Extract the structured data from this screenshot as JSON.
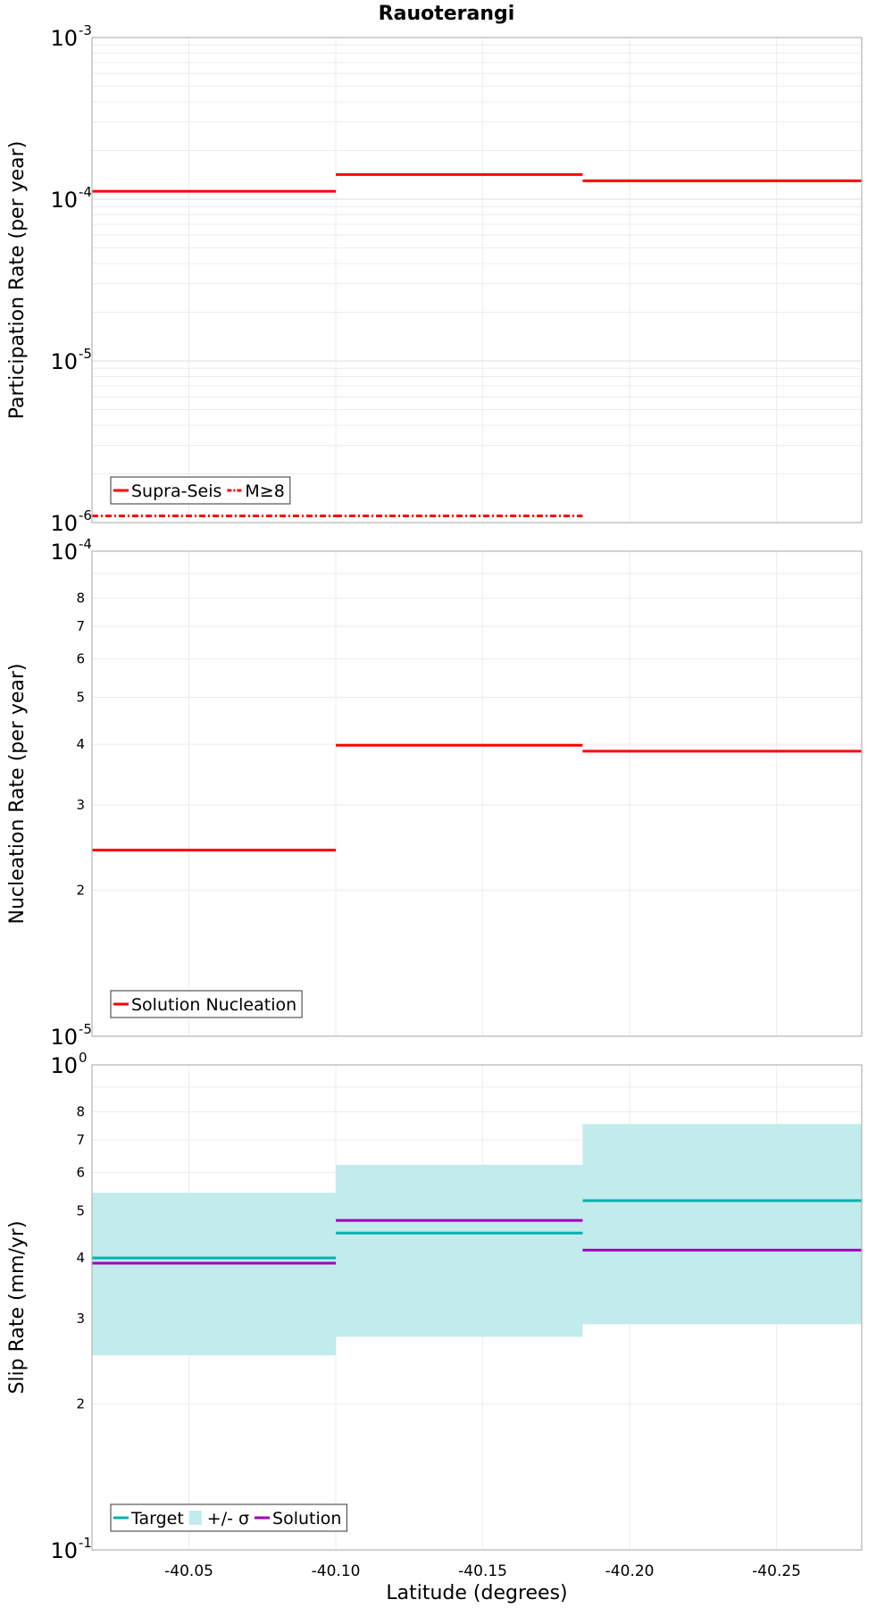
{
  "title": "Rauoterangi",
  "chart_data": [
    {
      "type": "line",
      "step": true,
      "ylabel": "Participation Rate (per year)",
      "xlabel": "",
      "yscale": "log",
      "ylim": [
        1e-06,
        0.001
      ],
      "xlim": [
        -40.017,
        -40.279
      ],
      "grid": true,
      "legend_position": "bottom-left",
      "y_tick_labels": [
        {
          "value": 0.001,
          "base": "10",
          "exp": "-3"
        },
        {
          "value": 0.0001,
          "base": "10",
          "exp": "-4"
        },
        {
          "value": 1e-05,
          "base": "10",
          "exp": "-5"
        },
        {
          "value": 1e-06,
          "base": "10",
          "exp": "-6"
        }
      ],
      "series": [
        {
          "name": "Supra-Seis",
          "color": "#ff0000",
          "style": "solid",
          "segments": [
            {
              "x": [
                -40.017,
                -40.1
              ],
              "y": 0.000112
            },
            {
              "x": [
                -40.1,
                -40.184
              ],
              "y": 0.000142
            },
            {
              "x": [
                -40.184,
                -40.279
              ],
              "y": 0.00013
            }
          ]
        },
        {
          "name": "M≥8",
          "color": "#ff0000",
          "style": "dashdot",
          "segments": [
            {
              "x": [
                -40.017,
                -40.1
              ],
              "y": 1.1e-06
            },
            {
              "x": [
                -40.1,
                -40.184
              ],
              "y": 1.1e-06
            }
          ]
        }
      ]
    },
    {
      "type": "line",
      "step": true,
      "ylabel": "Nucleation Rate (per year)",
      "xlabel": "",
      "yscale": "log",
      "ylim": [
        1e-05,
        0.0001
      ],
      "xlim": [
        -40.017,
        -40.279
      ],
      "grid": true,
      "legend_position": "bottom-left",
      "y_tick_labels": [
        {
          "value": 0.0001,
          "base": "10",
          "exp": "-4"
        },
        {
          "value": 1e-05,
          "base": "10",
          "exp": "-5"
        }
      ],
      "y_minor_tick_labels": [
        {
          "value": 2e-05,
          "label": "2"
        },
        {
          "value": 3e-05,
          "label": "3"
        },
        {
          "value": 4e-05,
          "label": "4"
        },
        {
          "value": 5e-05,
          "label": "5"
        },
        {
          "value": 6e-05,
          "label": "6"
        },
        {
          "value": 7e-05,
          "label": "7"
        },
        {
          "value": 8e-05,
          "label": "8"
        }
      ],
      "series": [
        {
          "name": "Solution Nucleation",
          "color": "#ff0000",
          "style": "solid",
          "segments": [
            {
              "x": [
                -40.017,
                -40.1
              ],
              "y": 2.42e-05
            },
            {
              "x": [
                -40.1,
                -40.184
              ],
              "y": 3.98e-05
            },
            {
              "x": [
                -40.184,
                -40.279
              ],
              "y": 3.87e-05
            }
          ]
        }
      ]
    },
    {
      "type": "line",
      "step": true,
      "ylabel": "Slip Rate (mm/yr)",
      "xlabel": "Latitude (degrees)",
      "yscale": "log",
      "ylim": [
        0.1,
        1
      ],
      "xlim": [
        -40.017,
        -40.279
      ],
      "grid": true,
      "legend_position": "bottom-left",
      "y_tick_labels": [
        {
          "value": 1,
          "base": "10",
          "exp": "0"
        },
        {
          "value": 0.1,
          "base": "10",
          "exp": "-1"
        }
      ],
      "y_minor_tick_labels": [
        {
          "value": 0.2,
          "label": "2"
        },
        {
          "value": 0.3,
          "label": "3"
        },
        {
          "value": 0.4,
          "label": "4"
        },
        {
          "value": 0.5,
          "label": "5"
        },
        {
          "value": 0.6,
          "label": "6"
        },
        {
          "value": 0.7,
          "label": "7"
        },
        {
          "value": 0.8,
          "label": "8"
        }
      ],
      "x_tick_labels": [
        {
          "value": -40.05,
          "label": "-40.05"
        },
        {
          "value": -40.1,
          "label": "-40.10"
        },
        {
          "value": -40.15,
          "label": "-40.15"
        },
        {
          "value": -40.2,
          "label": "-40.20"
        },
        {
          "value": -40.25,
          "label": "-40.25"
        }
      ],
      "bands": [
        {
          "name": "+/- σ",
          "color": "#c2ebeb",
          "segments": [
            {
              "x": [
                -40.017,
                -40.1
              ],
              "low": 0.252,
              "high": 0.545
            },
            {
              "x": [
                -40.1,
                -40.184
              ],
              "low": 0.275,
              "high": 0.622
            },
            {
              "x": [
                -40.184,
                -40.279
              ],
              "low": 0.292,
              "high": 0.755
            }
          ]
        }
      ],
      "series": [
        {
          "name": "Target",
          "color": "#00b0b0",
          "style": "solid",
          "segments": [
            {
              "x": [
                -40.017,
                -40.1
              ],
              "y": 0.4
            },
            {
              "x": [
                -40.1,
                -40.184
              ],
              "y": 0.45
            },
            {
              "x": [
                -40.184,
                -40.279
              ],
              "y": 0.525
            }
          ]
        },
        {
          "name": "Solution",
          "color": "#a000c0",
          "style": "solid",
          "segments": [
            {
              "x": [
                -40.017,
                -40.1
              ],
              "y": 0.39
            },
            {
              "x": [
                -40.1,
                -40.184
              ],
              "y": 0.478
            },
            {
              "x": [
                -40.184,
                -40.279
              ],
              "y": 0.415
            }
          ]
        }
      ],
      "legend_order": [
        "Target",
        "+/- σ",
        "Solution"
      ]
    }
  ]
}
